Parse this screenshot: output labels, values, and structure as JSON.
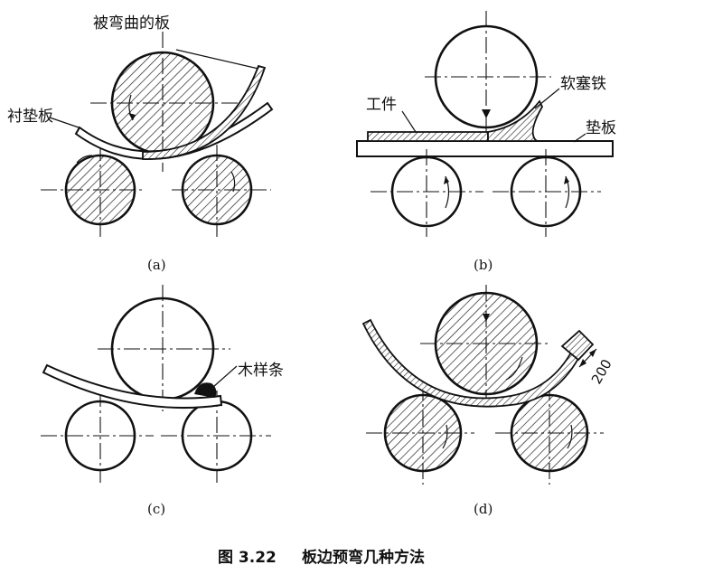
{
  "caption": {
    "number": "图 3.22",
    "title": "板边预弯几种方法"
  },
  "panels": {
    "a": {
      "sublabel": "(a)",
      "label_top": "被弯曲的板",
      "label_left": "衬垫板"
    },
    "b": {
      "sublabel": "(b)",
      "label_workpiece": "工件",
      "label_wedge": "软塞铁",
      "label_pad": "垫板"
    },
    "c": {
      "sublabel": "(c)",
      "label_wood": "木样条"
    },
    "d": {
      "sublabel": "(d)",
      "dimension": "200"
    }
  }
}
